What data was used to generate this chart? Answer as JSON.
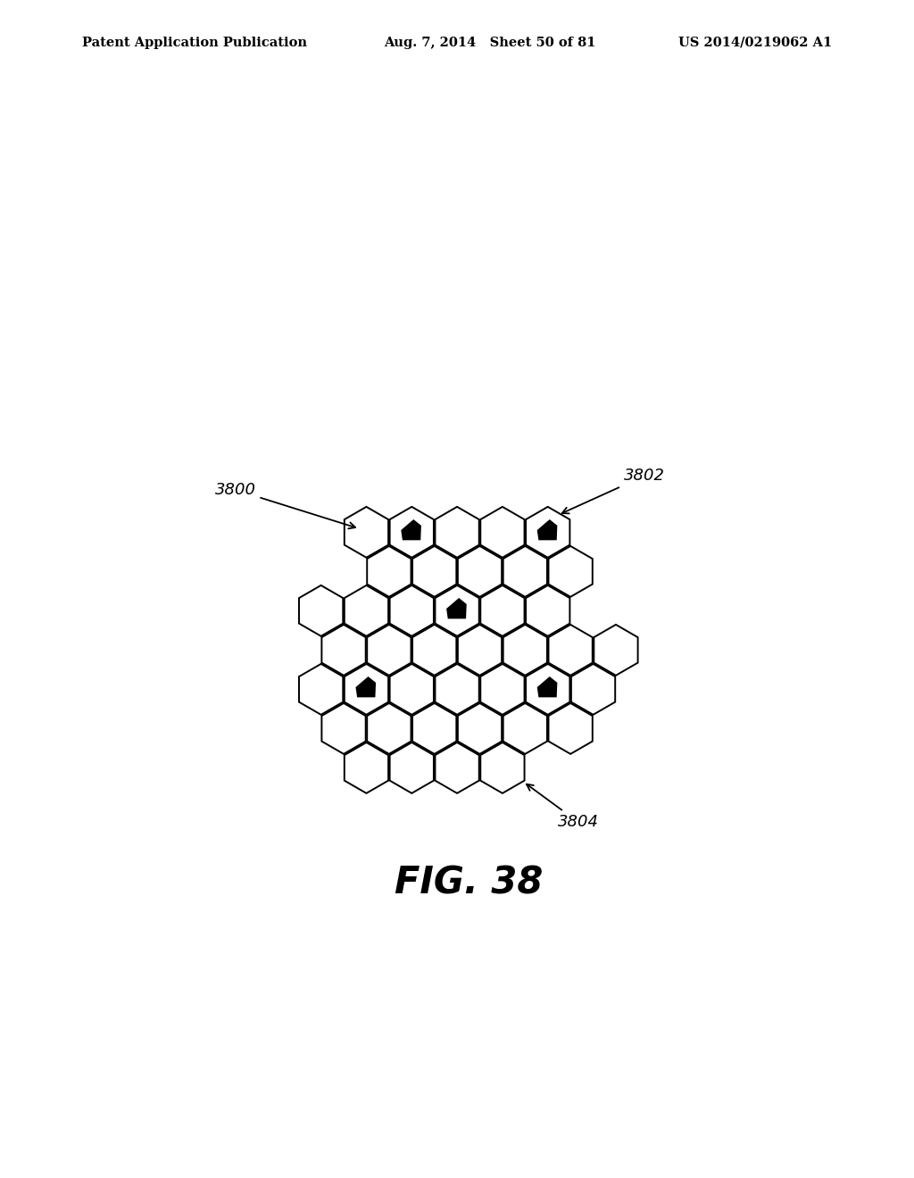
{
  "title": "FIG. 38",
  "header_left": "Patent Application Publication",
  "header_center": "Aug. 7, 2014   Sheet 50 of 81",
  "header_right": "US 2014/0219062 A1",
  "label_3800": "3800",
  "label_3802": "3802",
  "label_3804": "3804",
  "bg_color": "#ffffff",
  "hex_edge_color": "#000000",
  "hex_face_color": "#ffffff",
  "hex_linewidth": 1.4,
  "filled_color": "#000000",
  "title_fontsize": 30,
  "header_fontsize": 10.5,
  "label_fontsize": 13
}
